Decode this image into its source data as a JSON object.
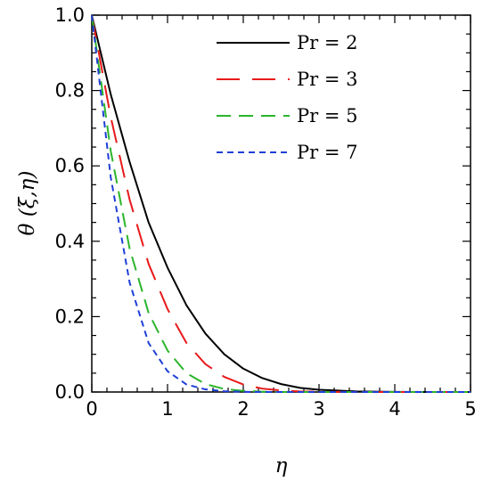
{
  "chart_data": {
    "type": "line",
    "xlabel": "η",
    "ylabel": "θ (ξ,η)",
    "xlim": [
      0,
      5
    ],
    "ylim": [
      0,
      1
    ],
    "x_ticks": [
      "0",
      "1",
      "2",
      "3",
      "4",
      "5"
    ],
    "y_ticks": [
      "0.0",
      "0.2",
      "0.4",
      "0.6",
      "0.8",
      "1.0"
    ],
    "grid": false,
    "legend_position": "top-right",
    "series": [
      {
        "name": "Pr = 2",
        "color": "#000000",
        "dash": "solid",
        "x": [
          0,
          0.25,
          0.5,
          0.75,
          1.0,
          1.25,
          1.5,
          1.75,
          2.0,
          2.25,
          2.5,
          2.75,
          3.0,
          3.5,
          4.0,
          4.5,
          5.0
        ],
        "y": [
          1.0,
          0.79,
          0.61,
          0.45,
          0.33,
          0.23,
          0.155,
          0.1,
          0.062,
          0.037,
          0.021,
          0.011,
          0.006,
          0.0015,
          0.0003,
          0.0,
          0.0
        ]
      },
      {
        "name": "Pr = 3",
        "color": "#e8191b",
        "dash": "long-dash",
        "x": [
          0,
          0.25,
          0.5,
          0.75,
          1.0,
          1.25,
          1.5,
          1.75,
          2.0,
          2.25,
          2.5,
          2.75,
          3.0,
          3.5,
          4.0,
          4.5,
          5.0
        ],
        "y": [
          1.0,
          0.73,
          0.51,
          0.34,
          0.22,
          0.13,
          0.074,
          0.04,
          0.02,
          0.009,
          0.004,
          0.0015,
          0.0005,
          0.0,
          0.0,
          0.0,
          0.0
        ]
      },
      {
        "name": "Pr = 5",
        "color": "#2bb52b",
        "dash": "dash",
        "x": [
          0,
          0.25,
          0.5,
          0.75,
          1.0,
          1.25,
          1.5,
          1.75,
          2.0,
          2.25,
          2.5,
          2.75,
          3.0,
          3.5,
          4.0,
          4.5,
          5.0
        ],
        "y": [
          1.0,
          0.64,
          0.38,
          0.21,
          0.11,
          0.05,
          0.021,
          0.008,
          0.003,
          0.001,
          0.0,
          0.0,
          0.0,
          0.0,
          0.0,
          0.0,
          0.0
        ]
      },
      {
        "name": "Pr = 7",
        "color": "#1f3fd6",
        "dash": "short-dash",
        "x": [
          0,
          0.25,
          0.5,
          0.75,
          1.0,
          1.25,
          1.5,
          1.75,
          2.0,
          2.25,
          2.5,
          2.75,
          3.0,
          3.5,
          4.0,
          4.5,
          5.0
        ],
        "y": [
          1.0,
          0.57,
          0.29,
          0.13,
          0.055,
          0.02,
          0.007,
          0.002,
          0.0005,
          0.0,
          0.0,
          0.0,
          0.0,
          0.0,
          0.0,
          0.0,
          0.0
        ]
      }
    ]
  }
}
